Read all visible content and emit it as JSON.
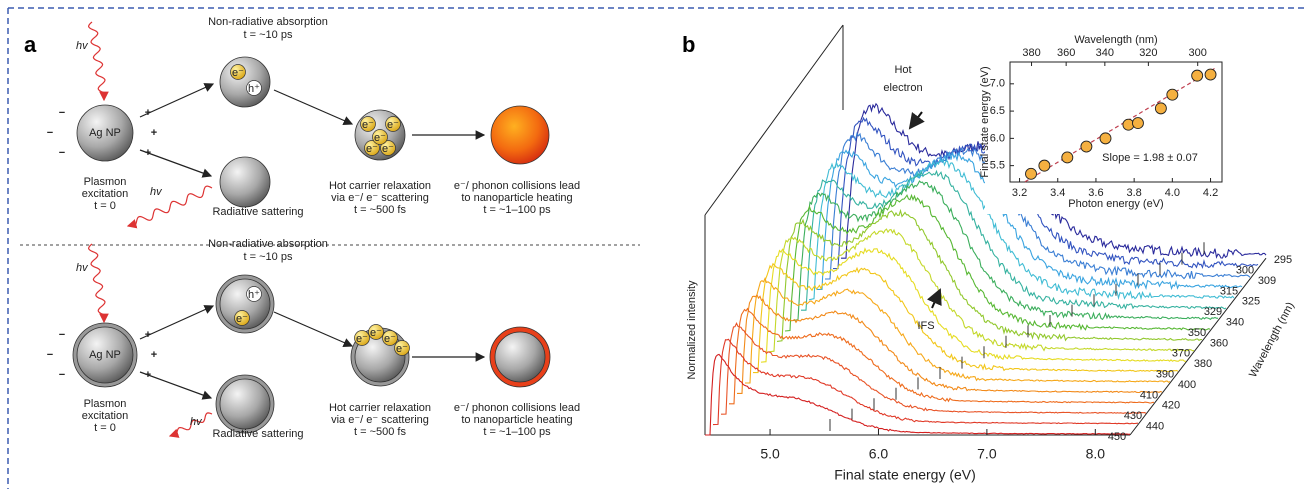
{
  "figure": {
    "panel_a_label": "a",
    "panel_b_label": "b"
  },
  "panel_a": {
    "rows": [
      {
        "photon_in": "hv",
        "photon_out": "hv",
        "minus": "−",
        "plus": "+",
        "particle": "Ag NP",
        "excitation": [
          "Plasmon",
          "excitation",
          "t = 0"
        ],
        "absorption": [
          "Non-radiative absorption",
          "t = ~10 ps"
        ],
        "electron": "e⁻",
        "hole": "h⁺",
        "scattering": "Radiative sattering",
        "relaxation": [
          "Hot carrier relaxation",
          "via e⁻/ e⁻ scattering",
          "t = ~500 fs"
        ],
        "heating": [
          "e⁻/ phonon collisions lead",
          "to nanoparticle heating",
          "t = ~1–100 ps"
        ]
      },
      {
        "photon_in": "hv",
        "photon_out": "hv",
        "minus": "−",
        "plus": "+",
        "particle": "Ag NP",
        "excitation": [
          "Plasmon",
          "excitation",
          "t = 0"
        ],
        "absorption": [
          "Non-radiative absorption",
          "t = ~10 ps"
        ],
        "electron": "e⁻",
        "hole": "h⁺",
        "scattering": "Radiative sattering",
        "relaxation": [
          "Hot carrier relaxation",
          "via e⁻/ e⁻ scattering",
          "t = ~500 fs"
        ],
        "heating": [
          "e⁻/ phonon collisions lead",
          "to nanoparticle heating",
          "t = ~1–100 ps"
        ]
      }
    ]
  },
  "chart_data": [
    {
      "type": "waterfall",
      "xlabel": "Final state energy (eV)",
      "ylabel": "Normalized intensity",
      "zlabel": "Wavelength (nm)",
      "xlim": [
        4.4,
        8.32
      ],
      "xticks": [
        {
          "value": 5,
          "label": "5.0"
        },
        {
          "value": 6,
          "label": "6.0"
        },
        {
          "value": 7,
          "label": "7.0"
        },
        {
          "value": 8,
          "label": "8.0"
        }
      ],
      "annotations": {
        "hot_electron": [
          "Hot",
          "electron"
        ],
        "ifs": "IFS"
      },
      "series": [
        {
          "name": "450",
          "color": "#d42020"
        },
        {
          "name": "440",
          "color": "#e03a28"
        },
        {
          "name": "430",
          "color": "#e85428"
        },
        {
          "name": "420",
          "color": "#ee6c1e"
        },
        {
          "name": "410",
          "color": "#f28a1a"
        },
        {
          "name": "400",
          "color": "#f6a81a"
        },
        {
          "name": "390",
          "color": "#f2c61a"
        },
        {
          "name": "380",
          "color": "#e6dc22"
        },
        {
          "name": "370",
          "color": "#c4d82a"
        },
        {
          "name": "360",
          "color": "#92c82e"
        },
        {
          "name": "350",
          "color": "#58b834"
        },
        {
          "name": "340",
          "color": "#3cae5c"
        },
        {
          "name": "329",
          "color": "#36b2a0"
        },
        {
          "name": "325",
          "color": "#40bcd4"
        },
        {
          "name": "315",
          "color": "#3aa4e0"
        },
        {
          "name": "309",
          "color": "#3a7ed4"
        },
        {
          "name": "300",
          "color": "#3354c0"
        },
        {
          "name": "295",
          "color": "#2a2a9c"
        }
      ]
    },
    {
      "type": "scatter",
      "xlabel": "Photon energy (eV)",
      "ylabel": "Final state energy (eV)",
      "x2label": "Wavelength (nm)",
      "annotation": "Slope = 1.98 ± 0.07",
      "color": "#f5b040",
      "x": [
        3.26,
        3.33,
        3.45,
        3.55,
        3.65,
        3.77,
        3.82,
        3.94,
        4.0,
        4.13,
        4.2
      ],
      "values": [
        5.35,
        5.5,
        5.65,
        5.85,
        6.0,
        6.25,
        6.28,
        6.55,
        6.8,
        7.15,
        7.17
      ],
      "xlim": [
        3.15,
        4.26
      ],
      "ylim": [
        5.2,
        7.4
      ],
      "xticks": [
        3.2,
        3.4,
        3.6,
        3.8,
        {
          "value": 4,
          "label": "4.0"
        },
        4.2
      ],
      "yticks": [
        5.5,
        {
          "value": 6,
          "label": "6.0"
        },
        6.5,
        {
          "value": 7,
          "label": "7.0"
        }
      ],
      "x2ticks": [
        380,
        360,
        340,
        320,
        300
      ]
    }
  ]
}
